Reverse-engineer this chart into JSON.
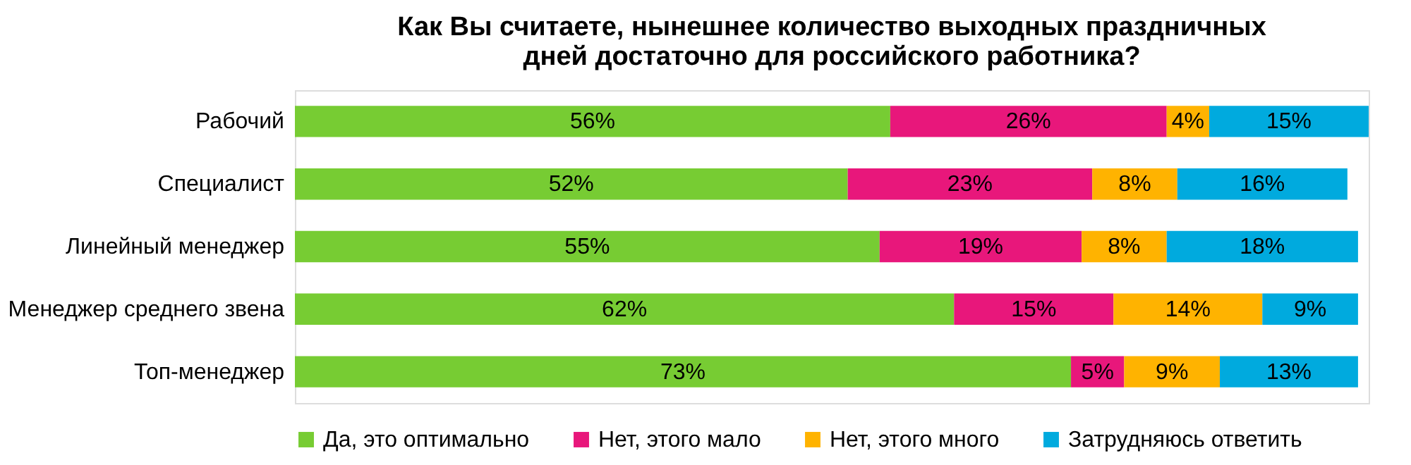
{
  "chart_data": {
    "type": "bar",
    "title": [
      "Как Вы считаете, нынешнее количество выходных праздничных",
      "дней достаточно для российского работника?"
    ],
    "categories": [
      "Рабочий",
      "Специалист",
      "Линейный менеджер",
      "Менеджер среднего звена",
      "Топ-менеджер"
    ],
    "orientation": "horizontal",
    "stacked": true,
    "legend": "bottom",
    "grid": false,
    "series": [
      {
        "name": "Да, это оптимально",
        "color": "#77cc33",
        "values": [
          56,
          52,
          55,
          62,
          73
        ],
        "value_labels": [
          "56%",
          "52%",
          "55%",
          "62%",
          "73%"
        ]
      },
      {
        "name": "Нет, этого мало",
        "color": "#e8177b",
        "values": [
          26,
          23,
          19,
          15,
          5
        ],
        "value_labels": [
          "26%",
          "23%",
          "19%",
          "15%",
          "5%"
        ]
      },
      {
        "name": "Нет, этого много",
        "color": "#ffb300",
        "values": [
          4,
          8,
          8,
          14,
          9
        ],
        "value_labels": [
          "4%",
          "8%",
          "8%",
          "14%",
          "9%"
        ]
      },
      {
        "name": "Затрудняюсь ответить",
        "color": "#00aade",
        "values": [
          15,
          16,
          18,
          9,
          13
        ],
        "value_labels": [
          "15%",
          "16%",
          "18%",
          "9%",
          "13%"
        ]
      }
    ]
  }
}
